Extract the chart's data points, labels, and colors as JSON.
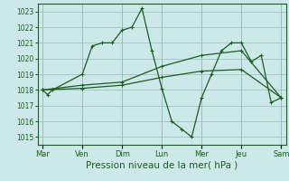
{
  "background_color": "#cce8e8",
  "grid_color": "#99bbbb",
  "line_color": "#1a5e20",
  "xlabel": "Pression niveau de la mer( hPa )",
  "xlabel_fontsize": 7.5,
  "ylim": [
    1014.5,
    1023.5
  ],
  "yticks": [
    1015,
    1016,
    1017,
    1018,
    1019,
    1020,
    1021,
    1022,
    1023
  ],
  "day_labels": [
    "Mar",
    "Ven",
    "Dim",
    "Lun",
    "Mer",
    "Jeu",
    "Sam"
  ],
  "day_positions": [
    0,
    16,
    32,
    48,
    64,
    80,
    96
  ],
  "series1_x": [
    0,
    2,
    4,
    16,
    20,
    24,
    28,
    32,
    36,
    40,
    44,
    48,
    52,
    56,
    60,
    64,
    68,
    72,
    76,
    80,
    84,
    88,
    92,
    96
  ],
  "series1_y": [
    1018.0,
    1017.7,
    1018.0,
    1019.0,
    1020.8,
    1021.0,
    1021.0,
    1021.8,
    1022.0,
    1023.2,
    1020.5,
    1018.1,
    1016.0,
    1015.5,
    1015.0,
    1017.5,
    1019.0,
    1020.5,
    1021.0,
    1021.0,
    1019.8,
    1020.2,
    1017.2,
    1017.5
  ],
  "series2_x": [
    0,
    16,
    32,
    48,
    64,
    80,
    96
  ],
  "series2_y": [
    1018.0,
    1018.3,
    1018.5,
    1019.5,
    1020.2,
    1020.5,
    1017.5
  ],
  "series3_x": [
    0,
    16,
    32,
    48,
    64,
    80,
    96
  ],
  "series3_y": [
    1018.0,
    1018.1,
    1018.3,
    1018.8,
    1019.2,
    1019.3,
    1017.5
  ]
}
